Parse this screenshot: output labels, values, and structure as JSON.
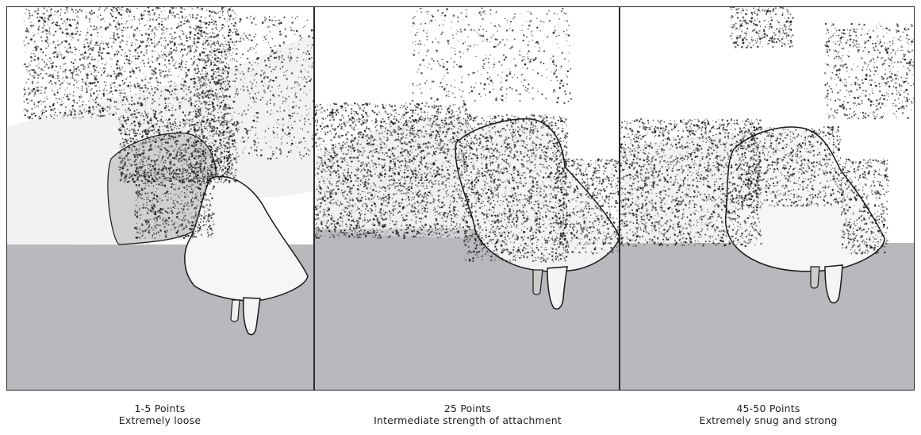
{
  "figure": {
    "colors": {
      "background": "#ffffff",
      "ground": "#b9b9bd",
      "ink": "#1a1a1a",
      "frame": "#2a2a2a"
    },
    "panels": [
      {
        "points": "1-5 Points",
        "description": "Extremely loose",
        "illustration": "udder-loose-attachment"
      },
      {
        "points": "25 Points",
        "description": "Intermediate strength of attachment",
        "illustration": "udder-intermediate-attachment"
      },
      {
        "points": "45-50 Points",
        "description": "Extremely snug and strong",
        "illustration": "udder-strong-attachment"
      }
    ]
  }
}
